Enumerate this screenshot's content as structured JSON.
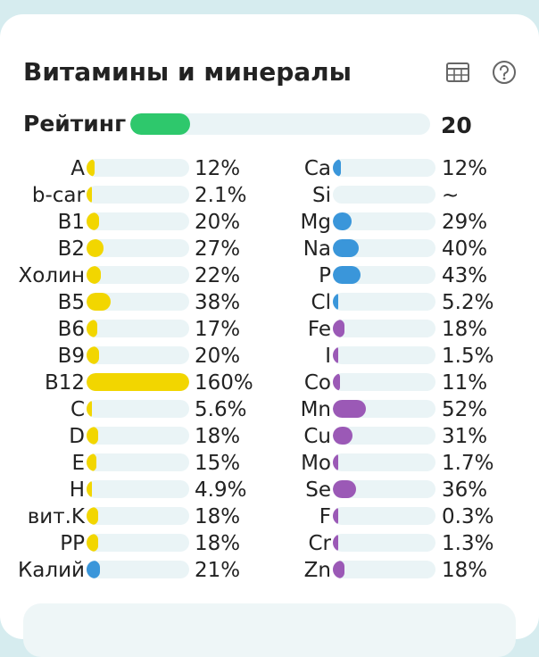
{
  "section": {
    "title": "Витамины и минералы",
    "table_icon": "table-icon",
    "help_icon": "help-circle-icon"
  },
  "rating": {
    "label": "Рейтинг",
    "value": "20",
    "fill_fraction": 0.2
  },
  "colors": {
    "vitamin": "#f2d600",
    "mineral_blue": "#3a96da",
    "mineral_purple": "#9b59b6",
    "rating": "#2ec86c",
    "track": "#eaf4f6"
  },
  "left": [
    {
      "name": "A",
      "value": "12%",
      "pct": 12,
      "color": "vitamin"
    },
    {
      "name": "b-car",
      "value": "2.1%",
      "pct": 2.1,
      "color": "vitamin"
    },
    {
      "name": "B1",
      "value": "20%",
      "pct": 20,
      "color": "vitamin"
    },
    {
      "name": "B2",
      "value": "27%",
      "pct": 27,
      "color": "vitamin"
    },
    {
      "name": "Холин",
      "value": "22%",
      "pct": 22,
      "color": "vitamin"
    },
    {
      "name": "B5",
      "value": "38%",
      "pct": 38,
      "color": "vitamin"
    },
    {
      "name": "B6",
      "value": "17%",
      "pct": 17,
      "color": "vitamin"
    },
    {
      "name": "B9",
      "value": "20%",
      "pct": 20,
      "color": "vitamin"
    },
    {
      "name": "B12",
      "value": "160%",
      "pct": 160,
      "color": "vitamin"
    },
    {
      "name": "C",
      "value": "5.6%",
      "pct": 5.6,
      "color": "vitamin"
    },
    {
      "name": "D",
      "value": "18%",
      "pct": 18,
      "color": "vitamin"
    },
    {
      "name": "E",
      "value": "15%",
      "pct": 15,
      "color": "vitamin"
    },
    {
      "name": "H",
      "value": "4.9%",
      "pct": 4.9,
      "color": "vitamin"
    },
    {
      "name": "вит.K",
      "value": "18%",
      "pct": 18,
      "color": "vitamin"
    },
    {
      "name": "PP",
      "value": "18%",
      "pct": 18,
      "color": "vitamin"
    },
    {
      "name": "Калий",
      "value": "21%",
      "pct": 21,
      "color": "mineral_blue"
    }
  ],
  "right": [
    {
      "name": "Ca",
      "value": "12%",
      "pct": 12,
      "color": "mineral_blue"
    },
    {
      "name": "Si",
      "value": "~",
      "pct": 0,
      "color": "mineral_blue"
    },
    {
      "name": "Mg",
      "value": "29%",
      "pct": 29,
      "color": "mineral_blue"
    },
    {
      "name": "Na",
      "value": "40%",
      "pct": 40,
      "color": "mineral_blue"
    },
    {
      "name": "P",
      "value": "43%",
      "pct": 43,
      "color": "mineral_blue"
    },
    {
      "name": "Cl",
      "value": "5.2%",
      "pct": 5.2,
      "color": "mineral_blue"
    },
    {
      "name": "Fe",
      "value": "18%",
      "pct": 18,
      "color": "mineral_purple"
    },
    {
      "name": "I",
      "value": "1.5%",
      "pct": 1.5,
      "color": "mineral_purple"
    },
    {
      "name": "Co",
      "value": "11%",
      "pct": 11,
      "color": "mineral_purple"
    },
    {
      "name": "Mn",
      "value": "52%",
      "pct": 52,
      "color": "mineral_purple"
    },
    {
      "name": "Cu",
      "value": "31%",
      "pct": 31,
      "color": "mineral_purple"
    },
    {
      "name": "Mo",
      "value": "1.7%",
      "pct": 1.7,
      "color": "mineral_purple"
    },
    {
      "name": "Se",
      "value": "36%",
      "pct": 36,
      "color": "mineral_purple"
    },
    {
      "name": "F",
      "value": "0.3%",
      "pct": 0.3,
      "color": "mineral_purple"
    },
    {
      "name": "Cr",
      "value": "1.3%",
      "pct": 1.3,
      "color": "mineral_purple"
    },
    {
      "name": "Zn",
      "value": "18%",
      "pct": 18,
      "color": "mineral_purple"
    }
  ]
}
